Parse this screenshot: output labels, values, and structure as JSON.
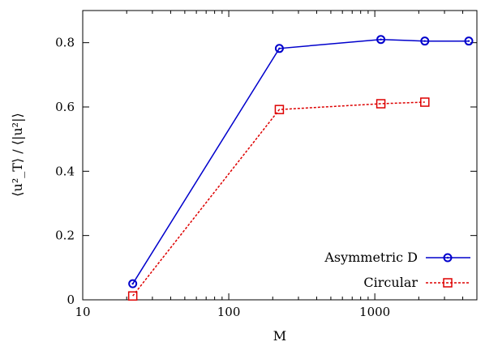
{
  "chart_data": {
    "type": "line",
    "xlabel": "M",
    "ylabel": "⟨u²_T⟩ / ⟨|u²|⟩",
    "x_scale": "log",
    "xlim": [
      10,
      5000
    ],
    "ylim": [
      0,
      0.9
    ],
    "x_ticks": [
      10,
      100,
      1000
    ],
    "x_tick_labels": [
      "10",
      "100",
      "1000"
    ],
    "y_ticks": [
      0,
      0.2,
      0.4,
      0.6,
      0.8
    ],
    "y_tick_labels": [
      "0",
      "0.2",
      "0.4",
      "0.6",
      "0.8"
    ],
    "legend_position": "bottom-right",
    "series": [
      {
        "name": "Asymmetric D",
        "color": "#0000cc",
        "line_style": "solid",
        "marker": "circle",
        "x": [
          22,
          222,
          1100,
          2200,
          4400
        ],
        "y": [
          0.05,
          0.782,
          0.81,
          0.805,
          0.805
        ]
      },
      {
        "name": "Circular",
        "color": "#dd0000",
        "line_style": "dashed",
        "marker": "square",
        "x": [
          22,
          222,
          1100,
          2200
        ],
        "y": [
          0.012,
          0.592,
          0.61,
          0.615
        ]
      }
    ]
  }
}
